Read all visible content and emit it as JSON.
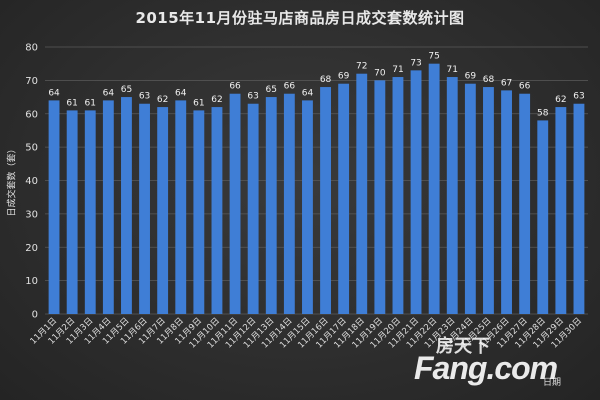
{
  "chart_data": {
    "type": "bar",
    "title": "2015年11月份驻马店商品房日成交套数统计图",
    "ylabel": "日成交套数（套）",
    "xlabel": "日期",
    "ylim": [
      0,
      80
    ],
    "yticks": [
      0,
      10,
      20,
      30,
      40,
      50,
      60,
      70,
      80
    ],
    "grid": true,
    "bar_color": "#3f7ed6",
    "categories": [
      "11月1日",
      "11月2日",
      "11月3日",
      "11月4日",
      "11月5日",
      "11月6日",
      "11月7日",
      "11月8日",
      "11月9日",
      "11月10日",
      "11月11日",
      "11月12日",
      "11月13日",
      "11月14日",
      "11月15日",
      "11月16日",
      "11月17日",
      "11月18日",
      "11月19日",
      "11月20日",
      "11月21日",
      "11月22日",
      "11月23日",
      "11月24日",
      "11月25日",
      "11月26日",
      "11月27日",
      "11月28日",
      "11月29日",
      "11月30日"
    ],
    "values": [
      64,
      61,
      61,
      64,
      65,
      63,
      62,
      64,
      61,
      62,
      66,
      63,
      65,
      66,
      64,
      68,
      69,
      72,
      70,
      71,
      73,
      75,
      71,
      69,
      68,
      67,
      66,
      58,
      62,
      63
    ]
  },
  "watermark": {
    "top_text": "房天下",
    "main_text": "Fang.com"
  }
}
